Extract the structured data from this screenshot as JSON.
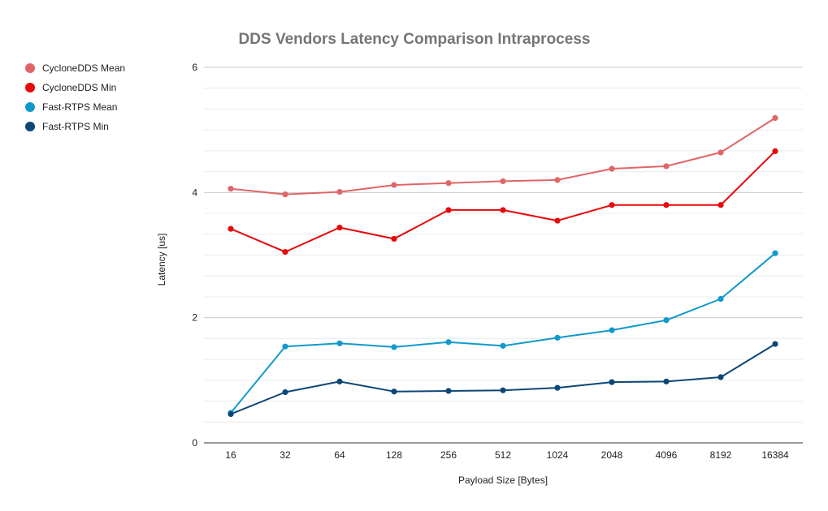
{
  "chart_data": {
    "type": "line",
    "title": "DDS Vendors Latency Comparison Intraprocess",
    "xlabel": "Payload Size [Bytes]",
    "ylabel": "Latency [us]",
    "categories": [
      "16",
      "32",
      "64",
      "128",
      "256",
      "512",
      "1024",
      "2048",
      "4096",
      "8192",
      "16384"
    ],
    "ylim": [
      0,
      6
    ],
    "yticks": [
      "0",
      "2",
      "4",
      "6"
    ],
    "minor_gridlines": true,
    "legend_position": "left",
    "series": [
      {
        "name": "CycloneDDS Mean",
        "color": "#e06666",
        "values": [
          4.06,
          3.97,
          4.01,
          4.12,
          4.15,
          4.18,
          4.2,
          4.38,
          4.42,
          4.64,
          5.19
        ]
      },
      {
        "name": "CycloneDDS Min",
        "color": "#e8080b",
        "values": [
          3.42,
          3.05,
          3.44,
          3.26,
          3.72,
          3.72,
          3.55,
          3.8,
          3.8,
          3.8,
          4.66
        ]
      },
      {
        "name": "Fast-RTPS Mean",
        "color": "#1199cc",
        "values": [
          0.48,
          1.54,
          1.59,
          1.53,
          1.61,
          1.55,
          1.68,
          1.8,
          1.96,
          2.3,
          3.03
        ]
      },
      {
        "name": "Fast-RTPS Min",
        "color": "#0d4777",
        "values": [
          0.46,
          0.81,
          0.98,
          0.82,
          0.83,
          0.84,
          0.88,
          0.97,
          0.98,
          1.05,
          1.58
        ]
      }
    ]
  }
}
